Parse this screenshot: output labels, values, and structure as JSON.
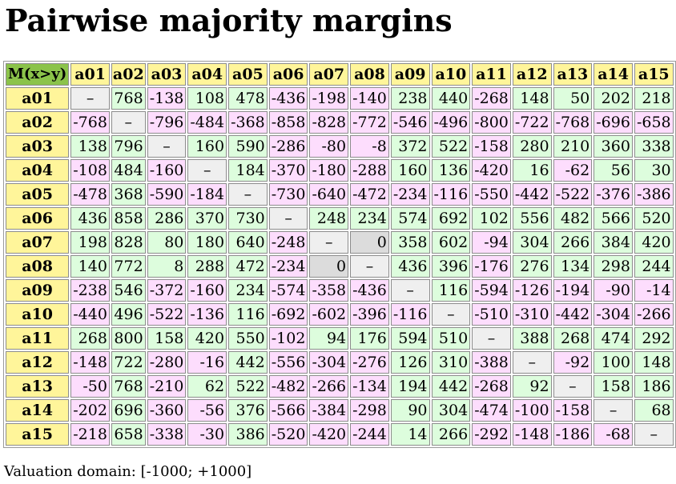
{
  "title": "Pairwise majority margins",
  "corner_label": "M(x>y)",
  "actions": [
    "a01",
    "a02",
    "a03",
    "a04",
    "a05",
    "a06",
    "a07",
    "a08",
    "a09",
    "a10",
    "a11",
    "a12",
    "a13",
    "a14",
    "a15"
  ],
  "diagonal_symbol": "–",
  "matrix": [
    [
      null,
      768,
      -138,
      108,
      478,
      -436,
      -198,
      -140,
      238,
      440,
      -268,
      148,
      50,
      202,
      218
    ],
    [
      -768,
      null,
      -796,
      -484,
      -368,
      -858,
      -828,
      -772,
      -546,
      -496,
      -800,
      -722,
      -768,
      -696,
      -658
    ],
    [
      138,
      796,
      null,
      160,
      590,
      -286,
      -80,
      -8,
      372,
      522,
      -158,
      280,
      210,
      360,
      338
    ],
    [
      -108,
      484,
      -160,
      null,
      184,
      -370,
      -180,
      -288,
      160,
      136,
      -420,
      16,
      -62,
      56,
      30
    ],
    [
      -478,
      368,
      -590,
      -184,
      null,
      -730,
      -640,
      -472,
      -234,
      -116,
      -550,
      -442,
      -522,
      -376,
      -386
    ],
    [
      436,
      858,
      286,
      370,
      730,
      null,
      248,
      234,
      574,
      692,
      102,
      556,
      482,
      566,
      520
    ],
    [
      198,
      828,
      80,
      180,
      640,
      -248,
      null,
      0,
      358,
      602,
      -94,
      304,
      266,
      384,
      420
    ],
    [
      140,
      772,
      8,
      288,
      472,
      -234,
      0,
      null,
      436,
      396,
      -176,
      276,
      134,
      298,
      244
    ],
    [
      -238,
      546,
      -372,
      -160,
      234,
      -574,
      -358,
      -436,
      null,
      116,
      -594,
      -126,
      -194,
      -90,
      -14
    ],
    [
      -440,
      496,
      -522,
      -136,
      116,
      -692,
      -602,
      -396,
      -116,
      null,
      -510,
      -310,
      -442,
      -304,
      -266
    ],
    [
      268,
      800,
      158,
      420,
      550,
      -102,
      94,
      176,
      594,
      510,
      null,
      388,
      268,
      474,
      292
    ],
    [
      -148,
      722,
      -280,
      -16,
      442,
      -556,
      -304,
      -276,
      126,
      310,
      -388,
      null,
      -92,
      100,
      148
    ],
    [
      -50,
      768,
      -210,
      62,
      522,
      -482,
      -266,
      -134,
      194,
      442,
      -268,
      92,
      null,
      158,
      186
    ],
    [
      -202,
      696,
      -360,
      -56,
      376,
      -566,
      -384,
      -298,
      90,
      304,
      -474,
      -100,
      -158,
      null,
      68
    ],
    [
      -218,
      658,
      -338,
      -30,
      386,
      -520,
      -420,
      -244,
      14,
      266,
      -292,
      -148,
      -186,
      -68,
      null
    ]
  ],
  "colors": {
    "corner": "#8bc34a",
    "header": "#fff59a",
    "positive": "#ddfddd",
    "negative": "#fdddfd",
    "zero": "#dcdcdc",
    "diagonal": "#efefef"
  },
  "footer": "Valuation domain: [-1000; +1000]"
}
